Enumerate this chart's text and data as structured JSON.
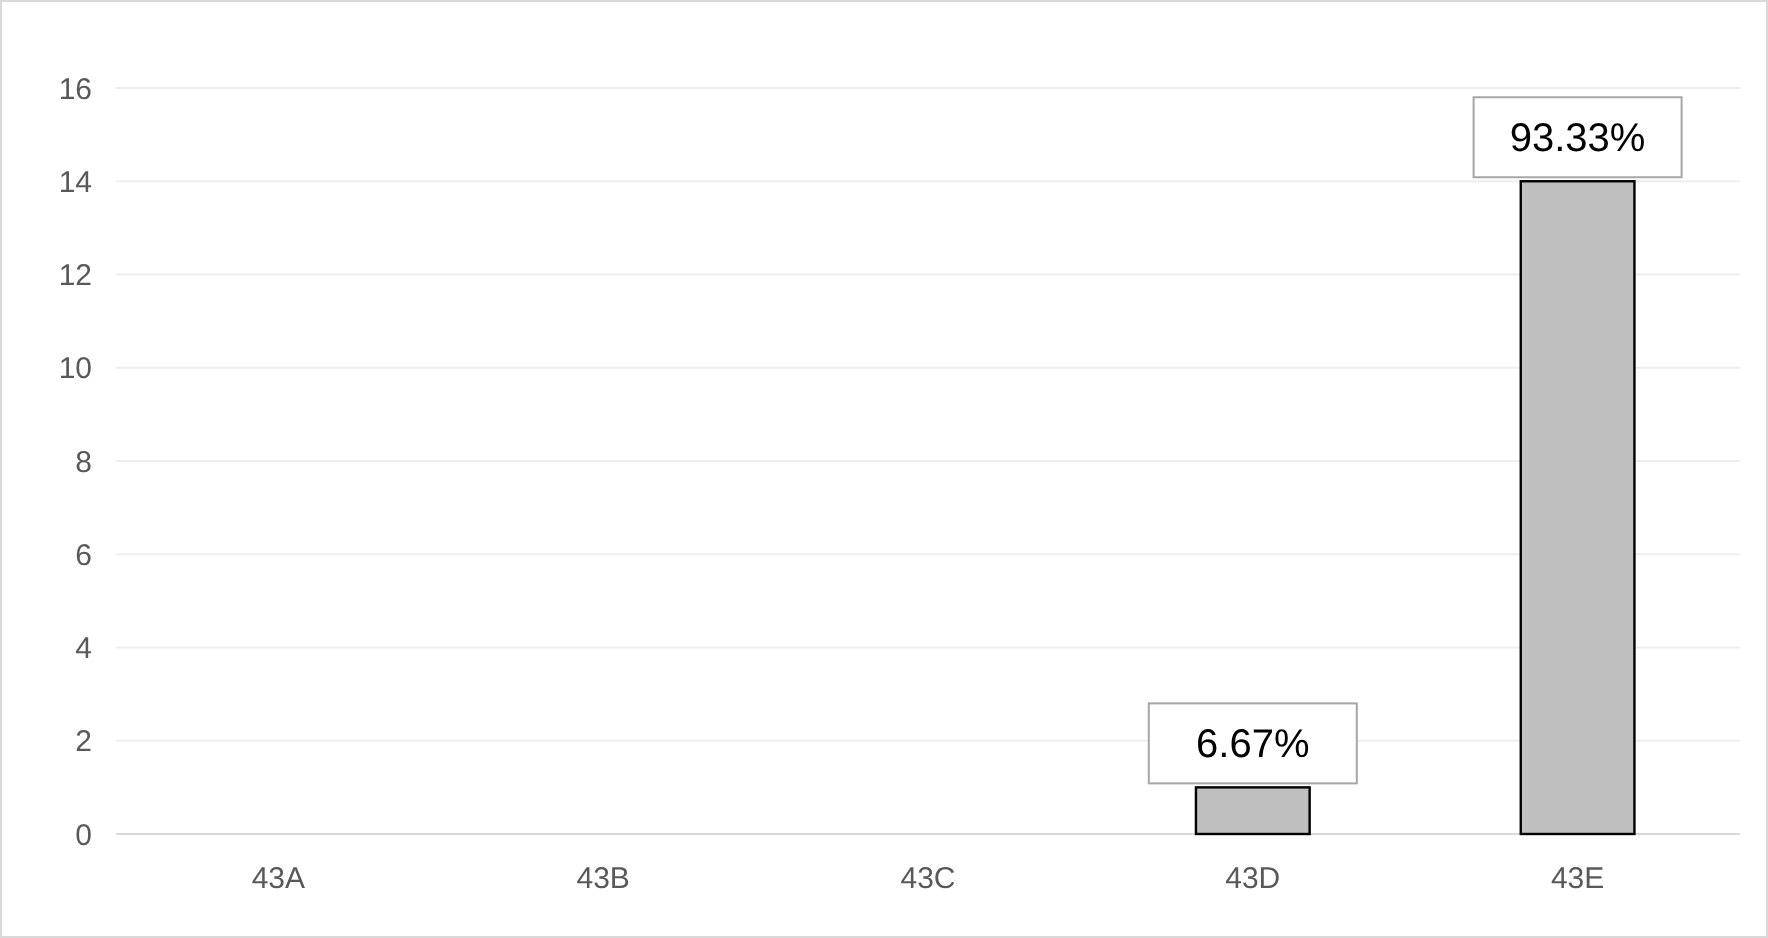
{
  "chart_data": {
    "type": "bar",
    "categories": [
      "43A",
      "43B",
      "43C",
      "43D",
      "43E"
    ],
    "values": [
      0,
      0,
      0,
      1,
      14
    ],
    "annotations": [
      {
        "text": "6.67%",
        "x": "43D",
        "y": 1
      },
      {
        "text": "93.33%",
        "x": "43E",
        "y": 14
      }
    ],
    "color": "#bfbfbf",
    "ylim": [
      0,
      16
    ],
    "yticks": [
      0,
      2,
      4,
      6,
      8,
      10,
      12,
      14,
      16
    ],
    "grid": "y"
  }
}
